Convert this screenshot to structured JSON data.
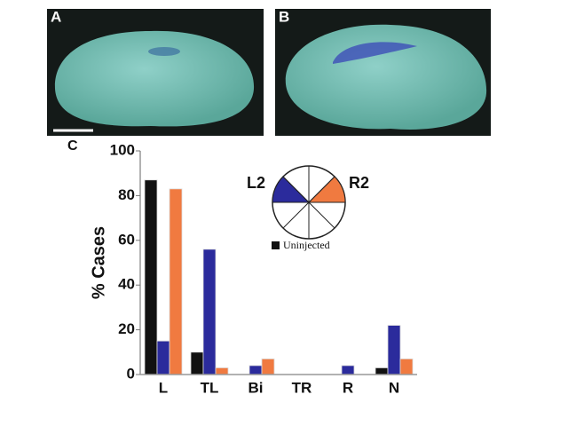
{
  "panels": {
    "a": "A",
    "b": "B",
    "c": "C"
  },
  "chart_data": {
    "type": "bar",
    "ylabel": "% Cases",
    "categories": [
      "L",
      "TL",
      "Bi",
      "TR",
      "R",
      "N"
    ],
    "series": [
      {
        "name": "Uninjected",
        "color": "#111111",
        "values": [
          87,
          10,
          0,
          0,
          0,
          3
        ]
      },
      {
        "name": "L2",
        "color": "#2b2b9c",
        "values": [
          15,
          56,
          4,
          0,
          4,
          22
        ]
      },
      {
        "name": "R2",
        "color": "#f07a40",
        "values": [
          83,
          3,
          7,
          0,
          0,
          7
        ]
      }
    ],
    "ylim": [
      0,
      100
    ],
    "yticks": [
      0,
      20,
      40,
      60,
      80,
      100
    ]
  }
}
